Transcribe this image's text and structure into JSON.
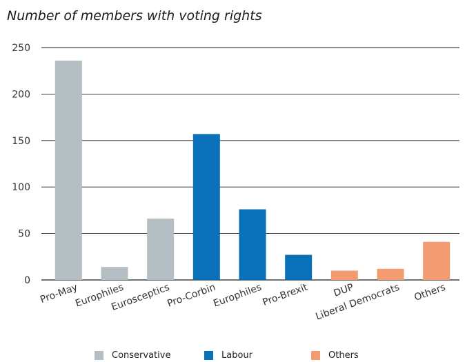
{
  "chart_data": {
    "type": "bar",
    "title": "Number of members with voting rights",
    "xlabel": "",
    "ylabel": "",
    "ylim": [
      0,
      250
    ],
    "yticks": [
      0,
      50,
      100,
      150,
      200,
      250
    ],
    "grid": true,
    "legend_position": "bottom",
    "categories": [
      "Pro-May",
      "Europhiles",
      "Eurosceptics",
      "Pro-Corbin",
      "Europhiles",
      "Pro-Brexit",
      "DUP",
      "Liberal Democrats",
      "Others"
    ],
    "values": [
      236,
      14,
      66,
      157,
      76,
      27,
      10,
      12,
      41
    ],
    "groups": [
      "Conservative",
      "Conservative",
      "Conservative",
      "Labour",
      "Labour",
      "Labour",
      "Others",
      "Others",
      "Others"
    ],
    "legend": [
      {
        "name": "Conservative",
        "color": "#b4bec3"
      },
      {
        "name": "Labour",
        "color": "#0a70b9"
      },
      {
        "name": "Others",
        "color": "#f29b70"
      }
    ]
  }
}
